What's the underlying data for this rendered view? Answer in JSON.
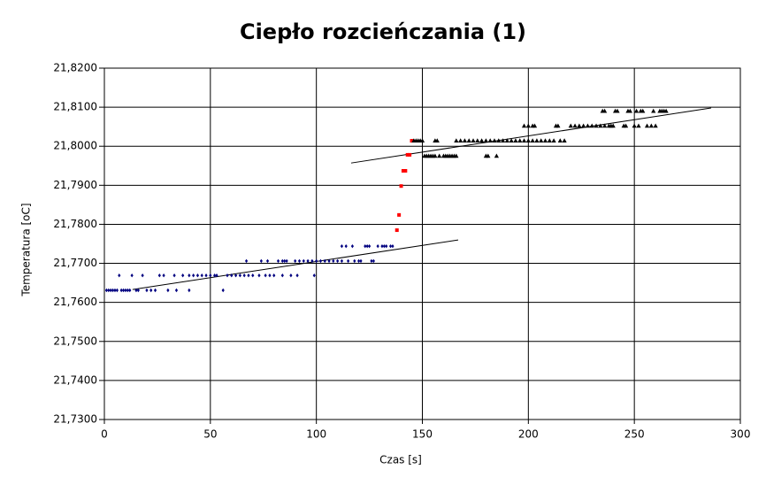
{
  "chart_data": {
    "type": "scatter",
    "title": "Ciepło rozcieńczania (1)",
    "x_label": "Czas [s]",
    "y_label": "Temperatura [oC]",
    "xlim": [
      0,
      300
    ],
    "xticks": [
      0,
      50,
      100,
      150,
      200,
      250,
      300
    ],
    "ylim": [
      21.73,
      21.82
    ],
    "yticks": [
      {
        "value": 21.73,
        "label": "21,7300"
      },
      {
        "value": 21.74,
        "label": "21,7400"
      },
      {
        "value": 21.75,
        "label": "21,7500"
      },
      {
        "value": 21.76,
        "label": "21,7600"
      },
      {
        "value": 21.77,
        "label": "21,7700"
      },
      {
        "value": 21.78,
        "label": "21,7800"
      },
      {
        "value": 21.79,
        "label": "21,7900"
      },
      {
        "value": 21.8,
        "label": "21,8000"
      },
      {
        "value": 21.81,
        "label": "21,8100"
      },
      {
        "value": 21.82,
        "label": "21,8200"
      }
    ],
    "grid": true,
    "series": [
      {
        "color": "#000080",
        "marker": "diamond",
        "x": [
          1,
          2,
          3,
          4,
          5,
          6,
          8,
          9,
          10,
          11,
          12,
          15,
          16,
          20,
          22,
          24,
          30,
          34,
          40,
          56,
          7,
          13,
          18,
          26,
          28,
          33,
          37,
          40,
          42,
          44,
          46,
          48,
          50,
          52,
          53,
          58,
          60,
          62,
          64,
          66,
          68,
          70,
          73,
          76,
          80,
          84,
          88,
          91,
          99,
          78,
          67,
          74,
          77,
          82,
          84,
          86,
          90,
          92,
          94,
          96,
          98,
          100,
          102,
          104,
          106,
          108,
          110,
          112,
          115,
          118,
          120,
          121,
          126,
          127,
          85,
          112,
          114,
          117,
          123,
          124,
          125,
          129,
          131,
          132,
          133,
          135,
          136
        ],
        "values": [
          21.7631,
          21.7631,
          21.7631,
          21.7631,
          21.7631,
          21.7631,
          21.7631,
          21.7631,
          21.7631,
          21.7631,
          21.7631,
          21.7631,
          21.7631,
          21.7631,
          21.7631,
          21.7631,
          21.7631,
          21.7631,
          21.7631,
          21.7631,
          21.7669,
          21.7669,
          21.7669,
          21.7669,
          21.7669,
          21.7669,
          21.7669,
          21.7669,
          21.7669,
          21.7669,
          21.7669,
          21.7669,
          21.7669,
          21.7669,
          21.7669,
          21.7669,
          21.7669,
          21.7669,
          21.7669,
          21.7669,
          21.7669,
          21.7669,
          21.7669,
          21.7669,
          21.7669,
          21.7669,
          21.7669,
          21.7669,
          21.7669,
          21.7669,
          21.7706,
          21.7706,
          21.7706,
          21.7706,
          21.7706,
          21.7706,
          21.7706,
          21.7706,
          21.7706,
          21.7706,
          21.7706,
          21.7706,
          21.7706,
          21.7706,
          21.7706,
          21.7706,
          21.7706,
          21.7706,
          21.7706,
          21.7706,
          21.7706,
          21.7706,
          21.7706,
          21.7706,
          21.7706,
          21.7744,
          21.7744,
          21.7744,
          21.7744,
          21.7744,
          21.7744,
          21.7744,
          21.7744,
          21.7744,
          21.7744,
          21.7744,
          21.7744
        ]
      },
      {
        "color": "#ff0000",
        "marker": "square",
        "x": [
          138,
          139,
          140,
          141,
          142,
          143,
          144,
          145
        ],
        "values": [
          21.7785,
          21.7824,
          21.7898,
          21.7937,
          21.7937,
          21.7978,
          21.7978,
          21.8014
        ]
      },
      {
        "color": "#000000",
        "marker": "triangle",
        "x": [
          151,
          152,
          153,
          154,
          155,
          156,
          158,
          160,
          161,
          162,
          163,
          164,
          165,
          166,
          180,
          181,
          185,
          146,
          147,
          148,
          149,
          150,
          156,
          157,
          166,
          168,
          170,
          172,
          174,
          176,
          178,
          180,
          182,
          184,
          186,
          188,
          190,
          192,
          194,
          196,
          198,
          200,
          202,
          204,
          206,
          208,
          210,
          212,
          215,
          217,
          198,
          200,
          202,
          203,
          213,
          214,
          220,
          222,
          224,
          226,
          228,
          230,
          232,
          234,
          236,
          238,
          239,
          240,
          245,
          246,
          250,
          252,
          256,
          258,
          260,
          235,
          236,
          241,
          242,
          247,
          248,
          251,
          253,
          254,
          259,
          262,
          263,
          264,
          265
        ],
        "values": [
          21.7975,
          21.7975,
          21.7975,
          21.7975,
          21.7975,
          21.7975,
          21.7975,
          21.7975,
          21.7975,
          21.7975,
          21.7975,
          21.7975,
          21.7975,
          21.7975,
          21.7975,
          21.7975,
          21.7975,
          21.8014,
          21.8014,
          21.8014,
          21.8014,
          21.8014,
          21.8014,
          21.8014,
          21.8014,
          21.8014,
          21.8014,
          21.8014,
          21.8014,
          21.8014,
          21.8014,
          21.8014,
          21.8014,
          21.8014,
          21.8014,
          21.8014,
          21.8014,
          21.8014,
          21.8014,
          21.8014,
          21.8014,
          21.8014,
          21.8014,
          21.8014,
          21.8014,
          21.8014,
          21.8014,
          21.8014,
          21.8014,
          21.8014,
          21.8052,
          21.8052,
          21.8052,
          21.8052,
          21.8052,
          21.8052,
          21.8052,
          21.8052,
          21.8052,
          21.8052,
          21.8052,
          21.8052,
          21.8052,
          21.8052,
          21.8052,
          21.8052,
          21.8052,
          21.8052,
          21.8052,
          21.8052,
          21.8052,
          21.8052,
          21.8052,
          21.8052,
          21.8052,
          21.809,
          21.809,
          21.809,
          21.809,
          21.809,
          21.809,
          21.809,
          21.809,
          21.809,
          21.809,
          21.809,
          21.809,
          21.809,
          21.809
        ]
      }
    ],
    "trendlines": [
      {
        "color": "#000000",
        "x": [
          13.3,
          166.9
        ],
        "values": [
          21.7633,
          21.776
        ]
      },
      {
        "color": "#000000",
        "x": [
          116.4,
          286.2
        ],
        "values": [
          21.7957,
          21.8098
        ]
      }
    ]
  }
}
